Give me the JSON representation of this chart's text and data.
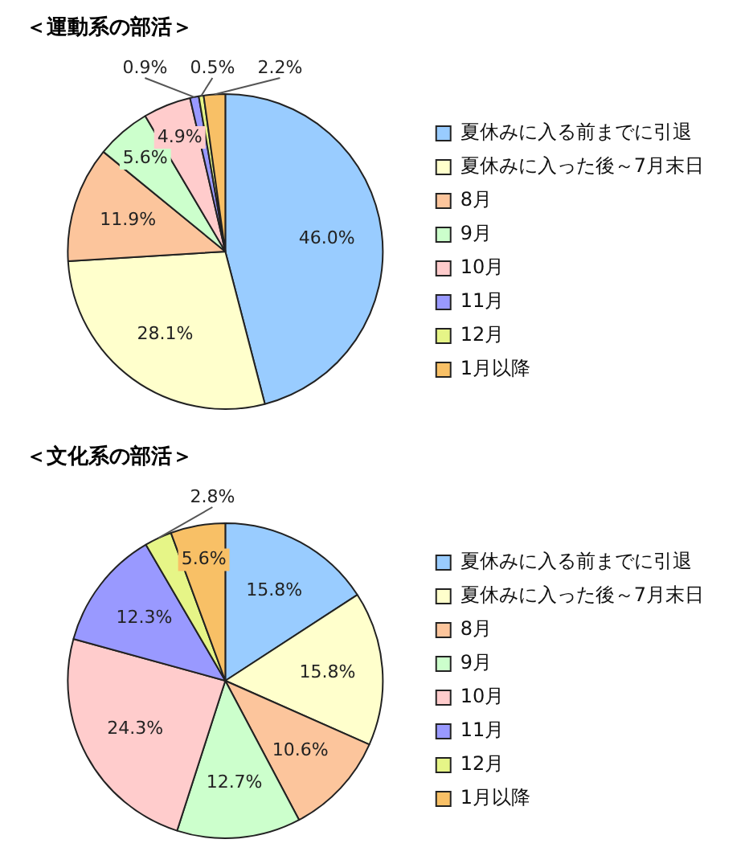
{
  "chart_data": [
    {
      "type": "pie",
      "title": "＜運動系の部活＞",
      "categories": [
        "夏休みに入る前までに引退",
        "夏休みに入った後～7月末日",
        "8月",
        "9月",
        "10月",
        "11月",
        "12月",
        "1月以降"
      ],
      "values": [
        46.0,
        28.1,
        11.9,
        5.6,
        4.9,
        0.9,
        0.5,
        2.2
      ],
      "value_labels": [
        "46.0%",
        "28.1%",
        "11.9%",
        "5.6%",
        "4.9%",
        "0.9%",
        "0.5%",
        "2.2%"
      ],
      "colors": [
        "#99ccff",
        "#ffffcc",
        "#fcc59c",
        "#ccffcc",
        "#ffcccc",
        "#9999ff",
        "#e6f587",
        "#f8c066"
      ],
      "legend": "right"
    },
    {
      "type": "pie",
      "title": "＜文化系の部活＞",
      "categories": [
        "夏休みに入る前までに引退",
        "夏休みに入った後～7月末日",
        "8月",
        "9月",
        "10月",
        "11月",
        "12月",
        "1月以降"
      ],
      "values": [
        15.8,
        15.8,
        10.6,
        12.7,
        24.3,
        12.3,
        2.8,
        5.6
      ],
      "value_labels": [
        "15.8%",
        "15.8%",
        "10.6%",
        "12.7%",
        "24.3%",
        "12.3%",
        "2.8%",
        "5.6%"
      ],
      "colors": [
        "#99ccff",
        "#ffffcc",
        "#fcc59c",
        "#ccffcc",
        "#ffcccc",
        "#9999ff",
        "#e6f587",
        "#f8c066"
      ],
      "legend": "right"
    }
  ]
}
